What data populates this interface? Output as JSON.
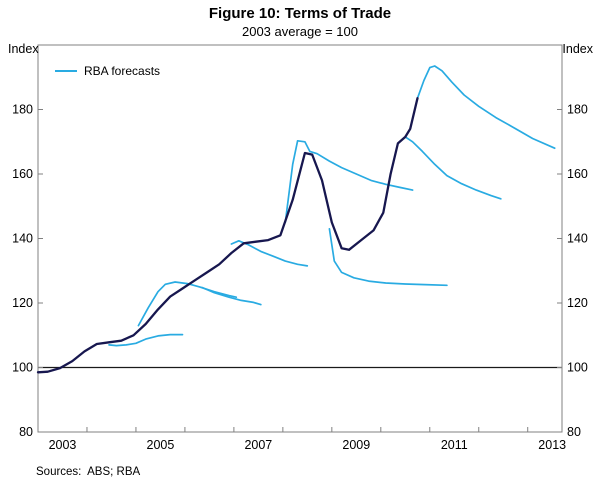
{
  "figure": {
    "title": "Figure 10: Terms of Trade",
    "subtitle": "2003 average = 100",
    "unit_left": "Index",
    "unit_right": "Index",
    "legend_label": "RBA forecasts",
    "sources": "Sources:  ABS; RBA"
  },
  "chart_data": {
    "type": "line",
    "title": "Figure 10: Terms of Trade",
    "subtitle": "2003 average = 100",
    "ylabel": "Index",
    "xlim": [
      2003.0,
      2013.7
    ],
    "ylim": [
      80,
      200
    ],
    "yticks": [
      80,
      100,
      120,
      140,
      160,
      180
    ],
    "xticks_minor": [
      2004,
      2005,
      2006,
      2007,
      2008,
      2009,
      2010,
      2011,
      2012,
      2013
    ],
    "xtick_labels": [
      2003,
      2005,
      2007,
      2009,
      2011,
      2013
    ],
    "baseline": 100,
    "grid": false,
    "legend_position": "top-left",
    "style": {
      "actual_color": "#17174f",
      "forecast_color": "#29abe2",
      "axis_color": "#808080",
      "baseline_color": "#1a1a1a",
      "actual_width": 2.3,
      "forecast_width": 1.7
    },
    "series": [
      {
        "name": "forecast-2004",
        "role": "forecast",
        "points": [
          [
            2004.45,
            107
          ],
          [
            2004.6,
            106.8
          ],
          [
            2004.8,
            107
          ],
          [
            2005.0,
            107.5
          ],
          [
            2005.2,
            108.8
          ],
          [
            2005.45,
            109.8
          ],
          [
            2005.7,
            110.2
          ],
          [
            2005.95,
            110.2
          ]
        ]
      },
      {
        "name": "forecast-2005",
        "role": "forecast",
        "points": [
          [
            2005.05,
            113
          ],
          [
            2005.25,
            118.5
          ],
          [
            2005.45,
            123.5
          ],
          [
            2005.6,
            125.8
          ],
          [
            2005.8,
            126.5
          ],
          [
            2006.05,
            126
          ],
          [
            2006.3,
            125
          ],
          [
            2006.6,
            123.5
          ],
          [
            2006.9,
            122.3
          ],
          [
            2007.05,
            121.8
          ]
        ]
      },
      {
        "name": "forecast-2006",
        "role": "forecast",
        "points": [
          [
            2006.35,
            124.8
          ],
          [
            2006.6,
            123.2
          ],
          [
            2006.9,
            121.8
          ],
          [
            2007.15,
            120.8
          ],
          [
            2007.4,
            120.2
          ],
          [
            2007.55,
            119.5
          ]
        ]
      },
      {
        "name": "forecast-2007",
        "role": "forecast",
        "points": [
          [
            2006.95,
            138.3
          ],
          [
            2007.1,
            139.3
          ],
          [
            2007.3,
            138
          ],
          [
            2007.55,
            136
          ],
          [
            2007.8,
            134.5
          ],
          [
            2008.05,
            133
          ],
          [
            2008.3,
            132
          ],
          [
            2008.5,
            131.5
          ]
        ]
      },
      {
        "name": "forecast-2008",
        "role": "forecast",
        "points": [
          [
            2008.05,
            145
          ],
          [
            2008.2,
            163
          ],
          [
            2008.3,
            170.3
          ],
          [
            2008.45,
            170
          ],
          [
            2008.55,
            167
          ],
          [
            2008.7,
            166.3
          ],
          [
            2008.95,
            164
          ],
          [
            2009.2,
            162
          ],
          [
            2009.5,
            160
          ],
          [
            2009.8,
            158
          ],
          [
            2010.1,
            156.8
          ],
          [
            2010.4,
            155.8
          ],
          [
            2010.65,
            155
          ]
        ]
      },
      {
        "name": "forecast-2009",
        "role": "forecast",
        "points": [
          [
            2008.95,
            143
          ],
          [
            2009.05,
            133
          ],
          [
            2009.2,
            129.5
          ],
          [
            2009.45,
            127.8
          ],
          [
            2009.75,
            126.8
          ],
          [
            2010.1,
            126.2
          ],
          [
            2010.5,
            125.9
          ],
          [
            2010.9,
            125.7
          ],
          [
            2011.35,
            125.5
          ]
        ]
      },
      {
        "name": "forecast-2010-early",
        "role": "forecast",
        "points": [
          [
            2010.5,
            171.5
          ],
          [
            2010.65,
            170
          ],
          [
            2010.85,
            167
          ],
          [
            2011.1,
            163
          ],
          [
            2011.35,
            159.5
          ],
          [
            2011.65,
            157
          ],
          [
            2011.95,
            155
          ],
          [
            2012.25,
            153.3
          ],
          [
            2012.45,
            152.3
          ]
        ]
      },
      {
        "name": "forecast-2010-latest",
        "role": "forecast",
        "points": [
          [
            2010.75,
            183.5
          ],
          [
            2010.88,
            189
          ],
          [
            2011.0,
            193
          ],
          [
            2011.1,
            193.5
          ],
          [
            2011.25,
            192
          ],
          [
            2011.45,
            188.5
          ],
          [
            2011.7,
            184.5
          ],
          [
            2012.0,
            181
          ],
          [
            2012.35,
            177.5
          ],
          [
            2012.7,
            174.5
          ],
          [
            2013.1,
            171
          ],
          [
            2013.55,
            168
          ]
        ]
      },
      {
        "name": "terms-of-trade-actual",
        "role": "actual",
        "points": [
          [
            2003.0,
            98.5
          ],
          [
            2003.2,
            98.7
          ],
          [
            2003.45,
            99.8
          ],
          [
            2003.7,
            102
          ],
          [
            2003.95,
            105
          ],
          [
            2004.2,
            107.3
          ],
          [
            2004.45,
            107.8
          ],
          [
            2004.7,
            108.3
          ],
          [
            2004.95,
            110
          ],
          [
            2005.2,
            113.5
          ],
          [
            2005.45,
            118
          ],
          [
            2005.7,
            122
          ],
          [
            2005.95,
            124.5
          ],
          [
            2006.2,
            127
          ],
          [
            2006.45,
            129.5
          ],
          [
            2006.7,
            132
          ],
          [
            2006.95,
            135.5
          ],
          [
            2007.2,
            138.5
          ],
          [
            2007.45,
            139
          ],
          [
            2007.7,
            139.5
          ],
          [
            2007.95,
            141
          ],
          [
            2008.2,
            152
          ],
          [
            2008.45,
            166.5
          ],
          [
            2008.6,
            166
          ],
          [
            2008.8,
            158
          ],
          [
            2009.0,
            145
          ],
          [
            2009.2,
            137
          ],
          [
            2009.35,
            136.5
          ],
          [
            2009.6,
            139.5
          ],
          [
            2009.85,
            142.5
          ],
          [
            2010.05,
            148
          ],
          [
            2010.2,
            160
          ],
          [
            2010.35,
            169.5
          ],
          [
            2010.5,
            171.5
          ],
          [
            2010.6,
            174
          ],
          [
            2010.75,
            183.5
          ]
        ]
      }
    ]
  }
}
